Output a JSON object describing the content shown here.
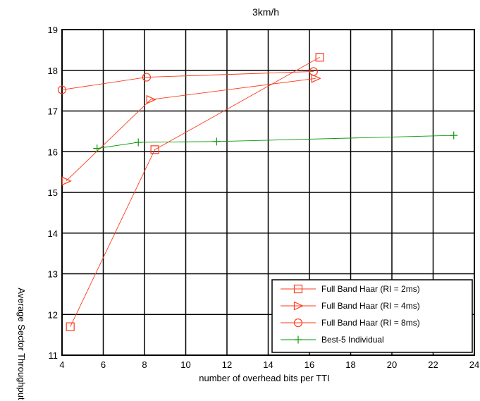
{
  "chart_data": {
    "type": "line",
    "title": "3km/h",
    "xlabel": "number of overhead bits per TTI",
    "ylabel": "Average Sector Throughput",
    "xlim": [
      4,
      24
    ],
    "ylim": [
      11,
      19
    ],
    "xticks": [
      4,
      6,
      8,
      10,
      12,
      14,
      16,
      18,
      20,
      22,
      24
    ],
    "yticks": [
      11,
      12,
      13,
      14,
      15,
      16,
      17,
      18,
      19
    ],
    "grid": true,
    "legend_position": "bottom-right",
    "series": [
      {
        "name": "Full Band Haar (RI = 2ms)",
        "color": "#ff3b1f",
        "marker": "square",
        "x": [
          4.4,
          8.5,
          16.5
        ],
        "y": [
          11.7,
          16.05,
          18.32
        ]
      },
      {
        "name": "Full Band Haar (RI = 4ms)",
        "color": "#ff3b1f",
        "marker": "triangle-right",
        "x": [
          4.2,
          8.3,
          16.3
        ],
        "y": [
          15.28,
          17.28,
          17.8
        ]
      },
      {
        "name": "Full Band Haar (RI = 8ms)",
        "color": "#ff3b1f",
        "marker": "circle",
        "x": [
          4.0,
          8.1,
          16.2
        ],
        "y": [
          17.52,
          17.83,
          17.97
        ]
      },
      {
        "name": "Best-5 Individual",
        "color": "#0a9a0a",
        "marker": "plus",
        "x": [
          5.7,
          7.7,
          11.5,
          23.0
        ],
        "y": [
          16.08,
          16.23,
          16.25,
          16.4
        ]
      }
    ]
  }
}
